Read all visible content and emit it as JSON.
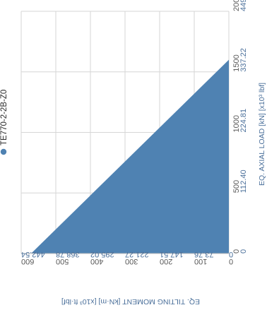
{
  "chart_data": {
    "type": "area",
    "series": [
      {
        "name": "TE770-2-2B-Z0",
        "points": [
          [
            0,
            571.4
          ],
          [
            1600,
            0
          ]
        ]
      }
    ],
    "xlabel": "EQ. AXIAL LOAD [kN] [x10³ lbf]",
    "ylabel": "EQ. TILTING MOMENT [kN·m] [x10³ ft·lbf]",
    "xlim": [
      0,
      2000
    ],
    "ylim": [
      0,
      600
    ],
    "x_ticks": [
      {
        "value": 0,
        "primary": "0",
        "secondary": "0"
      },
      {
        "value": 500,
        "primary": "500",
        "secondary": "112.40"
      },
      {
        "value": 1000,
        "primary": "1000",
        "secondary": "224.81"
      },
      {
        "value": 1500,
        "primary": "1500",
        "secondary": "337.22"
      },
      {
        "value": 2000,
        "primary": "2000",
        "secondary": "449.62"
      }
    ],
    "y_ticks": [
      {
        "value": 0,
        "primary": "0",
        "secondary": "0"
      },
      {
        "value": 100,
        "primary": "100",
        "secondary": "73.76"
      },
      {
        "value": 200,
        "primary": "200",
        "secondary": "147.51"
      },
      {
        "value": 300,
        "primary": "300",
        "secondary": "221.27"
      },
      {
        "value": 400,
        "primary": "400",
        "secondary": "295.02"
      },
      {
        "value": 500,
        "primary": "500",
        "secondary": "368.78"
      },
      {
        "value": 600,
        "primary": "600",
        "secondary": "442.54"
      }
    ],
    "grid": true,
    "legend": "left",
    "colors": {
      "fill": "#4f82b2",
      "grid": "#d6d6d6",
      "primary_text": "#5a5a5a",
      "secondary_text": "#4a6f9a",
      "legend_text": "#2b2b2b"
    }
  }
}
